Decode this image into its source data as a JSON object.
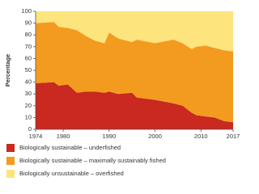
{
  "chart_data": {
    "type": "stacked-area",
    "y_label": "Percentage",
    "x": [
      1974,
      1978,
      1979,
      1981,
      1983,
      1985,
      1987,
      1989,
      1990,
      1992,
      1995,
      1996,
      2000,
      2004,
      2006,
      2008,
      2009,
      2011,
      2013,
      2015,
      2017
    ],
    "series": [
      {
        "name": "Biologically sustainable – underfished",
        "color": "#c9291e",
        "values": [
          39,
          40,
          37,
          38,
          31,
          32,
          32,
          31,
          32,
          30,
          31,
          27,
          25,
          22,
          20,
          14,
          12,
          11,
          10,
          7,
          6
        ]
      },
      {
        "name": "Biologically sustainable – maximally sustainably fished",
        "color": "#f39b1f",
        "values": [
          51,
          51,
          50,
          48,
          53,
          47,
          43,
          42,
          50,
          47,
          43,
          49,
          48,
          54,
          53,
          54,
          58,
          60,
          59,
          60,
          60
        ]
      },
      {
        "name": "Biologically unsustainable – overfished",
        "color": "#fde47c",
        "values": [
          10,
          9,
          13,
          14,
          16,
          21,
          25,
          27,
          18,
          23,
          26,
          24,
          27,
          24,
          27,
          32,
          30,
          29,
          31,
          33,
          34
        ]
      }
    ],
    "xlim": [
      1974,
      2017
    ],
    "ylim": [
      0,
      100
    ],
    "xticks": [
      1974,
      1980,
      1990,
      2000,
      2010,
      2017
    ],
    "yticks": [
      0,
      10,
      20,
      30,
      40,
      50,
      60,
      70,
      80,
      90,
      100
    ]
  }
}
